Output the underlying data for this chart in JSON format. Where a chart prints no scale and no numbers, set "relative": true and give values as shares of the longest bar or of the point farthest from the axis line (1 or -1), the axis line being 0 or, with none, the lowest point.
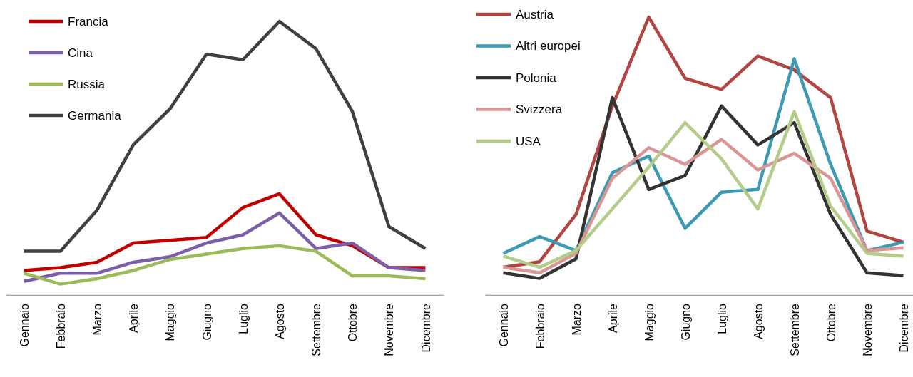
{
  "chart_data": [
    {
      "type": "line",
      "relative": true,
      "legend": "top left",
      "marker": "none",
      "line_style": "solid",
      "categories": [
        "Gennaio",
        "Febbraio",
        "Marzo",
        "Aprile",
        "Maggio",
        "Giugno",
        "Luglio",
        "Agosto",
        "Settembre",
        "Ottobre",
        "Novembre",
        "Dicembre"
      ],
      "series": [
        {
          "name": "Francia",
          "color": "#c00000",
          "values": [
            0.09,
            0.1,
            0.12,
            0.19,
            0.2,
            0.21,
            0.32,
            0.37,
            0.22,
            0.18,
            0.1,
            0.1
          ]
        },
        {
          "name": "Cina",
          "color": "#7b5ea7",
          "values": [
            0.05,
            0.08,
            0.08,
            0.12,
            0.14,
            0.19,
            0.22,
            0.3,
            0.17,
            0.19,
            0.1,
            0.09
          ]
        },
        {
          "name": "Russia",
          "color": "#9bbb59",
          "values": [
            0.08,
            0.04,
            0.06,
            0.09,
            0.13,
            0.15,
            0.17,
            0.18,
            0.16,
            0.07,
            0.07,
            0.06
          ]
        },
        {
          "name": "Germania",
          "color": "#404040",
          "values": [
            0.16,
            0.16,
            0.31,
            0.55,
            0.68,
            0.88,
            0.86,
            1,
            0.9,
            0.67,
            0.25,
            0.17
          ]
        }
      ]
    },
    {
      "type": "line",
      "relative": true,
      "legend": "top left",
      "marker": "none",
      "line_style": "solid",
      "categories": [
        "Gennaio",
        "Febbraio",
        "Marzo",
        "Aprile",
        "Maggio",
        "Giugno",
        "Luglio",
        "Agosto",
        "Settembre",
        "Ottobre",
        "Novembre",
        "Dicembre"
      ],
      "series": [
        {
          "name": "Austria",
          "color": "#b24442",
          "values": [
            0.1,
            0.12,
            0.29,
            0.68,
            1,
            0.78,
            0.74,
            0.86,
            0.81,
            0.71,
            0.23,
            0.19
          ]
        },
        {
          "name": "Altri europei",
          "color": "#3d9ab3",
          "values": [
            0.15,
            0.21,
            0.16,
            0.44,
            0.5,
            0.24,
            0.37,
            0.38,
            0.85,
            0.47,
            0.16,
            0.19
          ]
        },
        {
          "name": "Polonia",
          "color": "#333333",
          "values": [
            0.08,
            0.06,
            0.13,
            0.71,
            0.38,
            0.43,
            0.68,
            0.54,
            0.62,
            0.29,
            0.08,
            0.07
          ]
        },
        {
          "name": "Svizzera",
          "color": "#d99694",
          "values": [
            0.1,
            0.08,
            0.15,
            0.42,
            0.53,
            0.47,
            0.56,
            0.45,
            0.51,
            0.42,
            0.16,
            0.17
          ]
        },
        {
          "name": "USA",
          "color": "#b3cc8a",
          "values": [
            0.14,
            0.1,
            0.16,
            0.31,
            0.46,
            0.62,
            0.49,
            0.31,
            0.66,
            0.32,
            0.15,
            0.14
          ]
        }
      ]
    }
  ]
}
